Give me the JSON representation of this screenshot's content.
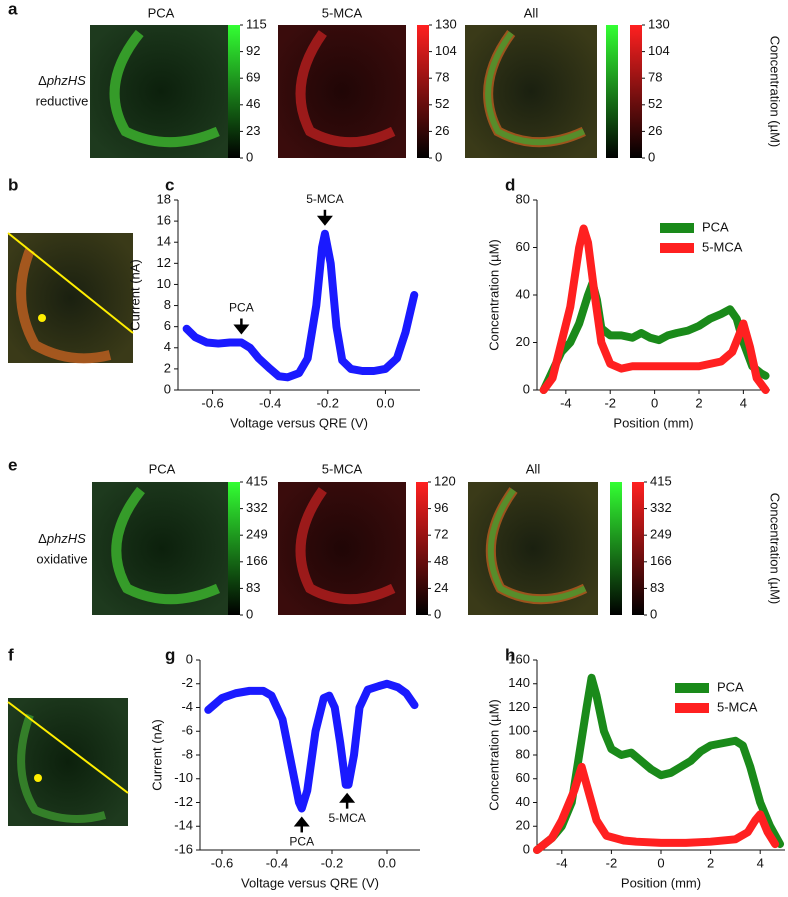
{
  "panel_labels": [
    "a",
    "b",
    "c",
    "d",
    "e",
    "f",
    "g",
    "h"
  ],
  "heatmap_rows": [
    {
      "delta": "Δ",
      "strain": "phzHS",
      "mode": "reductive",
      "titles": [
        "PCA",
        "5-MCA",
        "All"
      ],
      "colorbars": [
        {
          "colors": [
            "#33ff33"
          ],
          "ticks": [
            0,
            23,
            46,
            69,
            92,
            115
          ]
        },
        {
          "colors": [
            "#ff2020"
          ],
          "ticks": [
            0,
            26,
            52,
            78,
            104,
            130
          ]
        },
        {
          "colors": [
            "#33ff33",
            "#ff2020"
          ],
          "ticks": [
            0,
            26,
            52,
            78,
            104,
            130
          ]
        }
      ],
      "colorbar_label": "Concentration (µM)"
    },
    {
      "delta": "Δ",
      "strain": "phzHS",
      "mode": "oxidative",
      "titles": [
        "PCA",
        "5-MCA",
        "All"
      ],
      "colorbars": [
        {
          "colors": [
            "#33ff33"
          ],
          "ticks": [
            0,
            83,
            166,
            249,
            332,
            415
          ]
        },
        {
          "colors": [
            "#ff2020"
          ],
          "ticks": [
            0,
            24,
            48,
            72,
            96,
            120
          ]
        },
        {
          "colors": [
            "#33ff33",
            "#ff2020"
          ],
          "ticks": [
            0,
            83,
            166,
            249,
            332,
            415
          ]
        }
      ],
      "colorbar_label": "Concentration (µM)"
    }
  ],
  "chart_data": [
    {
      "type": "line",
      "x_label": "Voltage versus QRE (V)",
      "y_label": "Current (nA)",
      "color": "#1a1aff",
      "x": [
        -0.69,
        -0.66,
        -0.62,
        -0.58,
        -0.54,
        -0.5,
        -0.47,
        -0.44,
        -0.4,
        -0.37,
        -0.34,
        -0.3,
        -0.27,
        -0.24,
        -0.22,
        -0.21,
        -0.19,
        -0.17,
        -0.15,
        -0.12,
        -0.08,
        -0.04,
        0,
        0.04,
        0.07,
        0.1
      ],
      "values": [
        5.8,
        5,
        4.5,
        4.4,
        4.5,
        4.5,
        4,
        3,
        2,
        1.3,
        1.2,
        1.6,
        3,
        8,
        13.5,
        14.8,
        12,
        6,
        2.8,
        2,
        1.8,
        1.8,
        2,
        3,
        5.5,
        9
      ],
      "xlim": [
        -0.72,
        0.12
      ],
      "xticks": [
        -0.6,
        -0.4,
        -0.2,
        {
          "value": 0,
          "label": "0.0"
        }
      ],
      "ylim": [
        0,
        18
      ],
      "yticks": [
        0,
        2,
        4,
        6,
        8,
        10,
        12,
        14,
        16,
        18
      ],
      "annotations": [
        {
          "text": "PCA",
          "x": -0.5,
          "y": 4.5
        },
        {
          "text": "5-MCA",
          "x": -0.21,
          "y": 14.8
        }
      ]
    },
    {
      "type": "line",
      "x_label": "Position (mm)",
      "y_label": "Concentration (µM)",
      "legend": "upper right",
      "series": [
        {
          "name": "PCA",
          "color": "#1a8a1a",
          "x": [
            -5,
            -4.6,
            -4.2,
            -3.8,
            -3.4,
            -3,
            -2.8,
            -2.6,
            -2.4,
            -2,
            -1.5,
            -1,
            -0.6,
            -0.2,
            0.2,
            0.6,
            1,
            1.5,
            2,
            2.5,
            3,
            3.4,
            3.7,
            4,
            4.4,
            4.8,
            5
          ],
          "values": [
            0,
            8,
            16,
            20,
            28,
            40,
            45,
            38,
            26,
            23,
            23,
            22,
            24,
            22,
            21,
            23,
            24,
            25,
            27,
            30,
            32,
            34,
            30,
            20,
            10,
            7,
            6
          ]
        },
        {
          "name": "5-MCA",
          "color": "#ff2020",
          "x": [
            -5,
            -4.6,
            -4.2,
            -3.8,
            -3.4,
            -3.2,
            -3,
            -2.7,
            -2.4,
            -2,
            -1.5,
            -1,
            0,
            1,
            2,
            3,
            3.5,
            3.8,
            4,
            4.3,
            4.6,
            5
          ],
          "values": [
            0,
            5,
            20,
            35,
            60,
            68,
            62,
            40,
            20,
            11,
            9,
            10,
            10,
            10,
            10,
            12,
            16,
            23,
            28,
            18,
            5,
            0
          ]
        }
      ],
      "xlim": [
        -5.3,
        5.2
      ],
      "xticks": [
        -4,
        -2,
        0,
        2,
        4
      ],
      "ylim": [
        0,
        80
      ],
      "yticks": [
        0,
        20,
        40,
        60,
        80
      ]
    },
    {
      "type": "line",
      "x_label": "Voltage versus QRE (V)",
      "y_label": "Current (nA)",
      "color": "#1a1aff",
      "x": [
        -0.65,
        -0.6,
        -0.55,
        -0.5,
        -0.45,
        -0.42,
        -0.38,
        -0.35,
        -0.32,
        -0.31,
        -0.29,
        -0.26,
        -0.23,
        -0.21,
        -0.19,
        -0.17,
        -0.15,
        -0.14,
        -0.12,
        -0.1,
        -0.07,
        -0.03,
        0,
        0.04,
        0.07,
        0.1
      ],
      "values": [
        -4.2,
        -3.2,
        -2.8,
        -2.6,
        -2.6,
        -3,
        -5,
        -8.5,
        -12,
        -12.5,
        -11,
        -6,
        -3.2,
        -3,
        -4,
        -7,
        -10.5,
        -10.5,
        -8,
        -4,
        -2.5,
        -2.2,
        -2,
        -2.3,
        -2.8,
        -3.8
      ],
      "xlim": [
        -0.68,
        0.12
      ],
      "xticks": [
        -0.6,
        -0.4,
        -0.2,
        {
          "value": 0,
          "label": "0.0"
        }
      ],
      "ylim": [
        -16,
        0
      ],
      "yticks": [
        -16,
        -14,
        -12,
        -10,
        -8,
        -6,
        -4,
        -2,
        0
      ],
      "annotations": [
        {
          "text": "PCA",
          "x": -0.31,
          "y": -12.5
        },
        {
          "text": "5-MCA",
          "x": -0.145,
          "y": -10.5
        }
      ]
    },
    {
      "type": "line",
      "x_label": "Position (mm)",
      "y_label": "Concentration (µM)",
      "legend": "upper right",
      "series": [
        {
          "name": "PCA",
          "color": "#1a8a1a",
          "x": [
            -5,
            -4.4,
            -4,
            -3.6,
            -3.3,
            -3,
            -2.8,
            -2.6,
            -2.3,
            -2,
            -1.6,
            -1.2,
            -0.8,
            -0.4,
            0,
            0.4,
            0.8,
            1.2,
            1.6,
            2,
            2.5,
            3,
            3.3,
            3.6,
            4,
            4.4,
            4.8
          ],
          "values": [
            0,
            10,
            20,
            40,
            80,
            120,
            145,
            130,
            100,
            85,
            80,
            82,
            75,
            68,
            63,
            65,
            70,
            75,
            83,
            88,
            90,
            92,
            88,
            70,
            40,
            20,
            5
          ]
        },
        {
          "name": "5-MCA",
          "color": "#ff2020",
          "x": [
            -5,
            -4.4,
            -4,
            -3.5,
            -3.2,
            -3,
            -2.6,
            -2.2,
            -1.5,
            -1,
            0,
            1,
            2,
            3,
            3.5,
            3.8,
            4,
            4.3,
            4.6
          ],
          "values": [
            0,
            10,
            25,
            50,
            70,
            55,
            25,
            12,
            8,
            7,
            6,
            6,
            7,
            9,
            15,
            25,
            30,
            15,
            5
          ]
        }
      ],
      "xlim": [
        -5,
        5
      ],
      "xticks": [
        -4,
        -2,
        0,
        2,
        4
      ],
      "ylim": [
        0,
        160
      ],
      "yticks": [
        0,
        20,
        40,
        60,
        80,
        100,
        120,
        140,
        160
      ]
    }
  ]
}
